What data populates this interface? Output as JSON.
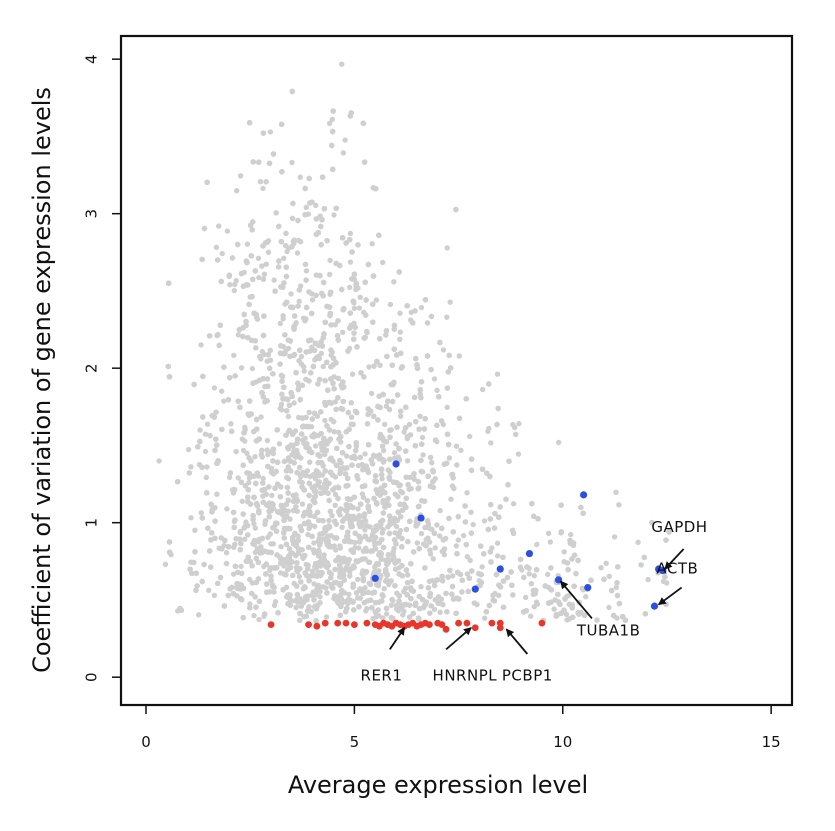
{
  "chart_data": {
    "type": "scatter",
    "xlabel": "Average expression level",
    "ylabel": "Coefficient of variation of gene expression levels",
    "xlim": [
      -0.6,
      15.5
    ],
    "ylim": [
      -0.18,
      4.15
    ],
    "xticks": [
      0,
      5,
      10,
      15
    ],
    "yticks": [
      0,
      1,
      2,
      3,
      4
    ],
    "x_tick_labels": [
      "0",
      "5",
      "10",
      "15"
    ],
    "y_tick_labels": [
      "0",
      "1",
      "2",
      "3",
      "4"
    ],
    "grid": false,
    "colors": {
      "background_points": "#cfcfcf",
      "highlight": "#2b4fe0",
      "stable": "#e8362b"
    },
    "highlight_points": [
      {
        "x": 6.0,
        "y": 1.38
      },
      {
        "x": 6.6,
        "y": 1.03
      },
      {
        "x": 5.5,
        "y": 0.64
      },
      {
        "x": 7.9,
        "y": 0.57
      },
      {
        "x": 8.5,
        "y": 0.7
      },
      {
        "x": 9.2,
        "y": 0.8
      },
      {
        "x": 9.9,
        "y": 0.63
      },
      {
        "x": 10.5,
        "y": 1.18
      },
      {
        "x": 10.6,
        "y": 0.58
      },
      {
        "x": 12.2,
        "y": 0.46
      },
      {
        "x": 12.3,
        "y": 0.7
      },
      {
        "x": 12.4,
        "y": 0.69
      }
    ],
    "stable_points": [
      {
        "x": 3.0,
        "y": 0.34
      },
      {
        "x": 3.9,
        "y": 0.34
      },
      {
        "x": 4.1,
        "y": 0.33
      },
      {
        "x": 4.3,
        "y": 0.35
      },
      {
        "x": 4.6,
        "y": 0.35
      },
      {
        "x": 4.8,
        "y": 0.35
      },
      {
        "x": 5.0,
        "y": 0.34
      },
      {
        "x": 5.3,
        "y": 0.35
      },
      {
        "x": 5.5,
        "y": 0.34
      },
      {
        "x": 5.6,
        "y": 0.33
      },
      {
        "x": 5.7,
        "y": 0.35
      },
      {
        "x": 5.8,
        "y": 0.34
      },
      {
        "x": 5.9,
        "y": 0.33
      },
      {
        "x": 6.0,
        "y": 0.35
      },
      {
        "x": 6.1,
        "y": 0.34
      },
      {
        "x": 6.2,
        "y": 0.33
      },
      {
        "x": 6.3,
        "y": 0.34
      },
      {
        "x": 6.4,
        "y": 0.35
      },
      {
        "x": 6.5,
        "y": 0.33
      },
      {
        "x": 6.6,
        "y": 0.34
      },
      {
        "x": 6.7,
        "y": 0.35
      },
      {
        "x": 6.8,
        "y": 0.34
      },
      {
        "x": 7.0,
        "y": 0.35
      },
      {
        "x": 7.1,
        "y": 0.34
      },
      {
        "x": 7.2,
        "y": 0.31
      },
      {
        "x": 7.5,
        "y": 0.35
      },
      {
        "x": 7.7,
        "y": 0.35
      },
      {
        "x": 7.9,
        "y": 0.32
      },
      {
        "x": 8.3,
        "y": 0.35
      },
      {
        "x": 8.5,
        "y": 0.32
      },
      {
        "x": 8.5,
        "y": 0.35
      },
      {
        "x": 9.5,
        "y": 0.35
      }
    ],
    "background_cloud": {
      "n": 5200,
      "seed": 42
    },
    "annotations": [
      {
        "label": "GAPDH",
        "text_x": 12.8,
        "text_y": 0.94,
        "arrow_from": [
          12.9,
          0.83
        ],
        "arrow_to": [
          12.45,
          0.7
        ]
      },
      {
        "label": "ACTB",
        "text_x": 12.75,
        "text_y": 0.67,
        "arrow_from": [
          12.85,
          0.58
        ],
        "arrow_to": [
          12.3,
          0.47
        ]
      },
      {
        "label": "TUBA1B",
        "text_x": 11.1,
        "text_y": 0.27,
        "arrow_from": [
          10.7,
          0.38
        ],
        "arrow_to": [
          9.95,
          0.62
        ]
      },
      {
        "label": "RER1",
        "text_x": 5.65,
        "text_y": -0.02,
        "arrow_from": [
          5.85,
          0.18
        ],
        "arrow_to": [
          6.2,
          0.32
        ]
      },
      {
        "label": "HNRNPL",
        "text_x": 7.65,
        "text_y": -0.02,
        "arrow_from": [
          7.2,
          0.18
        ],
        "arrow_to": [
          7.8,
          0.32
        ]
      },
      {
        "label": "PCBP1",
        "text_x": 9.15,
        "text_y": -0.02,
        "arrow_from": [
          9.15,
          0.15
        ],
        "arrow_to": [
          8.65,
          0.31
        ]
      }
    ]
  }
}
